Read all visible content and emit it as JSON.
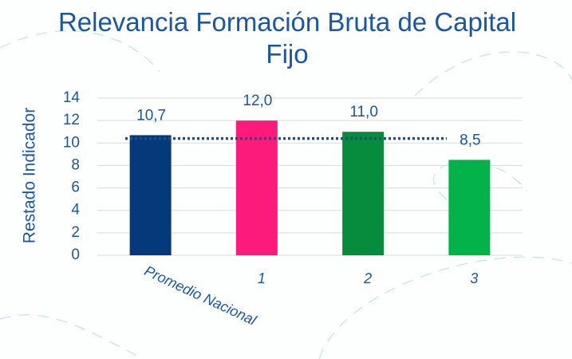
{
  "chart_data": {
    "type": "bar",
    "title": "Relevancia Formación Bruta de Capital Fijo",
    "y_label": "Restado Indicador",
    "categories": [
      "Promedio Nacional",
      "1",
      "2",
      "3"
    ],
    "values": [
      10.7,
      12.0,
      11.0,
      8.5
    ],
    "value_labels": [
      "10,7",
      "12,0",
      "11,0",
      "8,5"
    ],
    "colors": [
      "#053a7a",
      "#fc1b7b",
      "#068c3c",
      "#03b34a"
    ],
    "reference_line": 10.4,
    "reference_color": "#1f4e8c",
    "ylim": [
      0,
      14
    ],
    "yticks": [
      0,
      2,
      4,
      6,
      8,
      10,
      12,
      14
    ],
    "grid": true
  }
}
